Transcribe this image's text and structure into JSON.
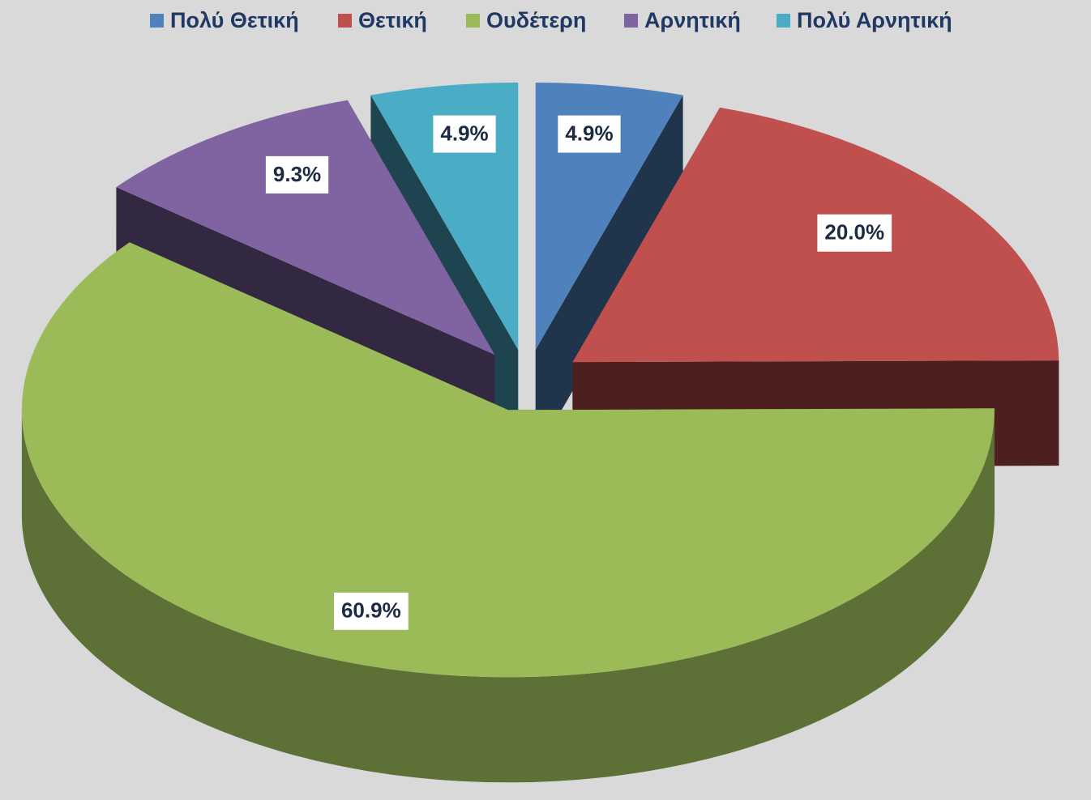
{
  "chart_data": {
    "type": "pie",
    "categories": [
      "Πολύ Θετική",
      "Θετική",
      "Ουδέτερη",
      "Αρνητική",
      "Πολύ Αρνητική"
    ],
    "values": [
      4.9,
      20.0,
      60.9,
      9.3,
      4.9
    ],
    "value_labels": [
      "4.9%",
      "20.0%",
      "60.9%",
      "9.3%",
      "4.9%"
    ],
    "colors": [
      "#4f81bd",
      "#c0504d",
      "#9bbb59",
      "#8064a2",
      "#4bacc6"
    ],
    "legend": "top"
  }
}
